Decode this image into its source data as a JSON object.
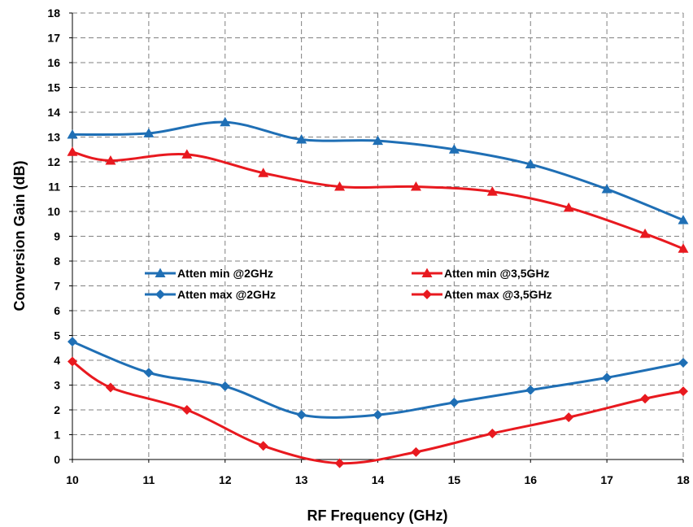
{
  "chart_data": {
    "type": "line",
    "xlabel": "RF Frequency (GHz)",
    "ylabel": "Conversion Gain (dB)",
    "xlim": [
      10,
      18
    ],
    "ylim": [
      0,
      18
    ],
    "x_ticks": [
      "10",
      "11",
      "12",
      "13",
      "14",
      "15",
      "16",
      "17",
      "18"
    ],
    "y_ticks": [
      "0",
      "1",
      "2",
      "3",
      "4",
      "5",
      "6",
      "7",
      "8",
      "9",
      "10",
      "11",
      "12",
      "13",
      "14",
      "15",
      "16",
      "17",
      "18"
    ],
    "grid": true,
    "legend_position": "center",
    "series": [
      {
        "name": "Atten min @2GHz",
        "color": "#1f6fb5",
        "marker": "triangle",
        "x": [
          10,
          11,
          12,
          13,
          14,
          15,
          16,
          17,
          18
        ],
        "y": [
          13.1,
          13.15,
          13.6,
          12.9,
          12.85,
          12.5,
          11.9,
          10.9,
          9.65
        ]
      },
      {
        "name": "Atten max @2GHz",
        "color": "#1f6fb5",
        "marker": "diamond",
        "x": [
          10,
          11,
          12,
          13,
          14,
          15,
          16,
          17,
          18
        ],
        "y": [
          4.75,
          3.5,
          2.95,
          1.8,
          1.8,
          2.3,
          2.8,
          3.3,
          3.9
        ]
      },
      {
        "name": "Atten min @3,5GHz",
        "color": "#e8191f",
        "marker": "triangle",
        "x": [
          10,
          10.5,
          11.5,
          12.5,
          13.5,
          14.5,
          15.5,
          16.5,
          17.5,
          18
        ],
        "y": [
          12.4,
          12.05,
          12.3,
          11.55,
          11.0,
          11.0,
          10.8,
          10.15,
          9.1,
          8.5
        ]
      },
      {
        "name": "Atten max @3,5GHz",
        "color": "#e8191f",
        "marker": "diamond",
        "x": [
          10,
          10.5,
          11.5,
          12.5,
          13.5,
          14.5,
          15.5,
          16.5,
          17.5,
          18
        ],
        "y": [
          3.95,
          2.9,
          2.0,
          0.55,
          -0.15,
          0.3,
          1.05,
          1.7,
          2.45,
          2.75
        ]
      }
    ]
  }
}
